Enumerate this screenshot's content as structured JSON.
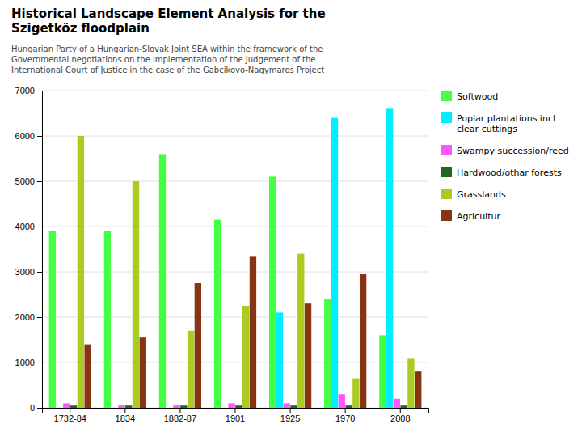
{
  "chart_data": {
    "type": "bar",
    "title": "Historical Landscape Element Analysis for the\nSzigetköz floodplain",
    "subtitle": "Hungarian Party of a Hungarian-Slovak Joint SEA within the framework of the\nGovernmental negotiations on the implementation of the Judgement of the\nInternational Court of Justice in the case of the Gabcikovo-Nagymaros Project",
    "categories": [
      "1732-84",
      "1834",
      "1882-87",
      "1901",
      "1925",
      "1970",
      "2008"
    ],
    "series": [
      {
        "name": "Softwood",
        "color": "#44FF44",
        "values": [
          3900,
          3900,
          5600,
          4150,
          5100,
          2400,
          1600
        ]
      },
      {
        "name": "Poplar plantations incl\nclear cuttings",
        "color": "#00EEFF",
        "values": [
          0,
          0,
          0,
          0,
          2100,
          6400,
          6600
        ]
      },
      {
        "name": "Swampy succession/reed",
        "color": "#FF55FF",
        "values": [
          100,
          50,
          50,
          100,
          100,
          300,
          200
        ]
      },
      {
        "name": "Hardwood/othar forests",
        "color": "#226622",
        "values": [
          50,
          50,
          50,
          50,
          50,
          50,
          50
        ]
      },
      {
        "name": "Grasslands",
        "color": "#AACC22",
        "values": [
          6000,
          5000,
          1700,
          2250,
          3400,
          650,
          1100
        ]
      },
      {
        "name": "Agricultur",
        "color": "#883311",
        "values": [
          1400,
          1550,
          2750,
          3350,
          2300,
          2950,
          800
        ]
      }
    ],
    "ylim": [
      0,
      7000
    ],
    "yticks": [
      0,
      1000,
      2000,
      3000,
      4000,
      5000,
      6000,
      7000
    ],
    "grid": true,
    "legend": "upper right"
  }
}
